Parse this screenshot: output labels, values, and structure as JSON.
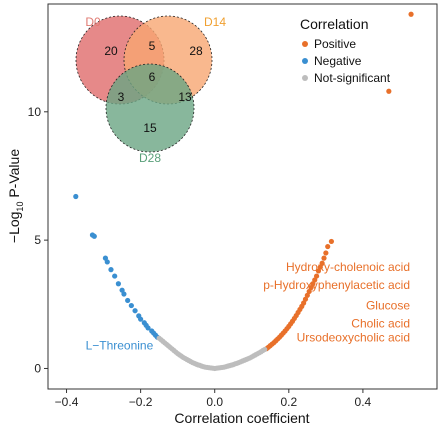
{
  "chart_data": {
    "type": "scatter",
    "xlabel": "Correlation coefficient",
    "ylabel": "−Log",
    "ylabel_sub": "10",
    "ylabel_rest": " P-Value",
    "xlim": [
      -0.45,
      0.6
    ],
    "ylim": [
      -0.8,
      14.2
    ],
    "xticks": [
      -0.4,
      -0.2,
      0.0,
      0.2,
      0.4
    ],
    "xtick_labels": [
      "−0.4",
      "−0.2",
      "0.0",
      "0.2",
      "0.4"
    ],
    "yticks": [
      0,
      5,
      10
    ],
    "ytick_labels": [
      "0",
      "5",
      "10"
    ],
    "grid": false,
    "legend": {
      "title": "Correlation",
      "position": "top-right",
      "items": [
        {
          "label": "Positive",
          "color": "#e8702a"
        },
        {
          "label": "Negative",
          "color": "#3a8fd1"
        },
        {
          "label": "Not-significant",
          "color": "#bdbdbd"
        }
      ]
    },
    "series": [
      {
        "name": "Positive",
        "color": "#e8702a",
        "points": [
          [
            0.53,
            13.8
          ],
          [
            0.47,
            10.8
          ],
          [
            0.315,
            4.95
          ],
          [
            0.305,
            4.75
          ],
          [
            0.3,
            4.5
          ],
          [
            0.295,
            4.3
          ],
          [
            0.29,
            4.1
          ],
          [
            0.285,
            3.95
          ],
          [
            0.28,
            3.8
          ],
          [
            0.275,
            3.6
          ],
          [
            0.27,
            3.45
          ],
          [
            0.265,
            3.3
          ],
          [
            0.26,
            3.15
          ],
          [
            0.255,
            3.0
          ],
          [
            0.25,
            2.85
          ],
          [
            0.245,
            2.7
          ],
          [
            0.24,
            2.55
          ],
          [
            0.235,
            2.42
          ],
          [
            0.23,
            2.3
          ],
          [
            0.225,
            2.18
          ],
          [
            0.22,
            2.06
          ],
          [
            0.215,
            1.95
          ],
          [
            0.21,
            1.84
          ],
          [
            0.205,
            1.74
          ],
          [
            0.2,
            1.64
          ],
          [
            0.195,
            1.55
          ],
          [
            0.19,
            1.46
          ],
          [
            0.185,
            1.38
          ],
          [
            0.18,
            1.3
          ],
          [
            0.175,
            1.22
          ],
          [
            0.17,
            1.15
          ],
          [
            0.165,
            1.08
          ],
          [
            0.16,
            1.01
          ],
          [
            0.155,
            0.95
          ],
          [
            0.15,
            0.89
          ],
          [
            0.145,
            0.83
          ],
          [
            0.14,
            0.77
          ]
        ]
      },
      {
        "name": "Negative",
        "color": "#3a8fd1",
        "points": [
          [
            -0.375,
            6.7
          ],
          [
            -0.33,
            5.2
          ],
          [
            -0.325,
            5.15
          ],
          [
            -0.295,
            4.3
          ],
          [
            -0.29,
            4.15
          ],
          [
            -0.28,
            3.85
          ],
          [
            -0.27,
            3.6
          ],
          [
            -0.26,
            3.3
          ],
          [
            -0.25,
            3.05
          ],
          [
            -0.245,
            2.9
          ],
          [
            -0.235,
            2.65
          ],
          [
            -0.225,
            2.45
          ],
          [
            -0.215,
            2.25
          ],
          [
            -0.205,
            2.05
          ],
          [
            -0.2,
            1.92
          ],
          [
            -0.19,
            1.78
          ],
          [
            -0.185,
            1.68
          ],
          [
            -0.18,
            1.58
          ],
          [
            -0.17,
            1.46
          ],
          [
            -0.165,
            1.38
          ],
          [
            -0.16,
            1.3
          ],
          [
            -0.155,
            1.22
          ]
        ]
      },
      {
        "name": "Not-significant",
        "color": "#bdbdbd",
        "points": [
          [
            -0.15,
            1.18
          ],
          [
            -0.145,
            1.12
          ],
          [
            -0.14,
            1.06
          ],
          [
            -0.135,
            1.0
          ],
          [
            -0.13,
            0.94
          ],
          [
            -0.125,
            0.88
          ],
          [
            -0.12,
            0.82
          ],
          [
            -0.115,
            0.76
          ],
          [
            -0.11,
            0.7
          ],
          [
            -0.105,
            0.64
          ],
          [
            -0.1,
            0.58
          ],
          [
            -0.095,
            0.53
          ],
          [
            -0.09,
            0.48
          ],
          [
            -0.085,
            0.43
          ],
          [
            -0.08,
            0.39
          ],
          [
            -0.075,
            0.35
          ],
          [
            -0.07,
            0.31
          ],
          [
            -0.065,
            0.27
          ],
          [
            -0.06,
            0.23
          ],
          [
            -0.055,
            0.2
          ],
          [
            -0.05,
            0.17
          ],
          [
            -0.045,
            0.14
          ],
          [
            -0.04,
            0.12
          ],
          [
            -0.035,
            0.09
          ],
          [
            -0.03,
            0.07
          ],
          [
            -0.025,
            0.05
          ],
          [
            -0.02,
            0.04
          ],
          [
            -0.015,
            0.03
          ],
          [
            -0.01,
            0.02
          ],
          [
            -0.005,
            0.01
          ],
          [
            0.0,
            0.0
          ],
          [
            0.005,
            0.01
          ],
          [
            0.01,
            0.02
          ],
          [
            0.015,
            0.03
          ],
          [
            0.02,
            0.04
          ],
          [
            0.025,
            0.05
          ],
          [
            0.03,
            0.07
          ],
          [
            0.035,
            0.09
          ],
          [
            0.04,
            0.11
          ],
          [
            0.045,
            0.13
          ],
          [
            0.05,
            0.15
          ],
          [
            0.055,
            0.18
          ],
          [
            0.06,
            0.2
          ],
          [
            0.065,
            0.23
          ],
          [
            0.07,
            0.26
          ],
          [
            0.075,
            0.29
          ],
          [
            0.08,
            0.32
          ],
          [
            0.085,
            0.35
          ],
          [
            0.09,
            0.38
          ],
          [
            0.095,
            0.41
          ],
          [
            0.1,
            0.45
          ],
          [
            0.105,
            0.49
          ],
          [
            0.11,
            0.53
          ],
          [
            0.115,
            0.57
          ],
          [
            0.12,
            0.61
          ],
          [
            0.125,
            0.65
          ],
          [
            0.13,
            0.7
          ],
          [
            0.135,
            0.74
          ]
        ]
      }
    ],
    "annotations": [
      {
        "text": "Hydroxy-cholenoic acid",
        "color": "#e8702a",
        "x": 0.3,
        "y": 3.95
      },
      {
        "text": "p-Hydroxyphenylacetic acid",
        "color": "#e8702a",
        "x": 0.3,
        "y": 3.25
      },
      {
        "text": "Glucose",
        "color": "#e8702a",
        "x": 0.3,
        "y": 2.45
      },
      {
        "text": "Cholic acid",
        "color": "#e8702a",
        "x": 0.3,
        "y": 1.75
      },
      {
        "text": "Ursodeoxycholic acid",
        "color": "#e8702a",
        "x": 0.3,
        "y": 1.2
      },
      {
        "text": "L−Threonine",
        "color": "#3a8fd1",
        "x": -0.155,
        "y": 0.9
      }
    ],
    "venn": {
      "sets": [
        {
          "label": "D0",
          "color": "#e06b6b",
          "label_color": "#e07a72"
        },
        {
          "label": "D14",
          "color": "#f7a672",
          "label_color": "#f0a030"
        },
        {
          "label": "D28",
          "color": "#6aa583",
          "label_color": "#5aa07a"
        }
      ],
      "regions": {
        "D0_only": "20",
        "D14_only": "28",
        "D28_only": "15",
        "D0_D14": "5",
        "D0_D28": "3",
        "D14_D28": "13",
        "all": "6"
      }
    }
  }
}
